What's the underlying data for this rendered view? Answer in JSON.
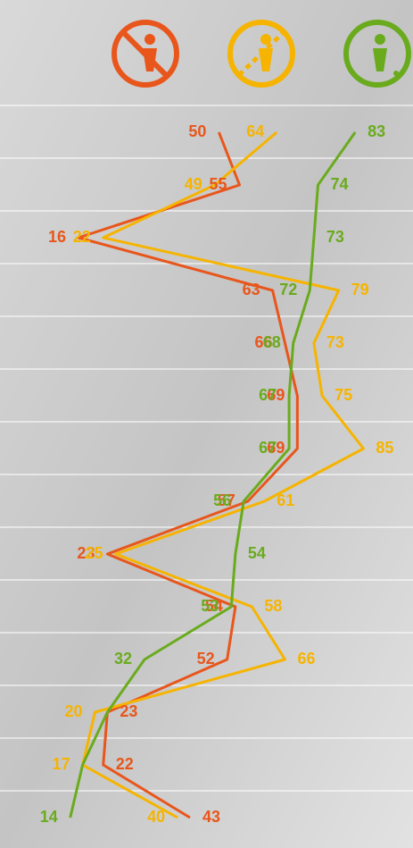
{
  "chart_data": {
    "type": "line",
    "orientation": "vertical",
    "xlim": [
      -3,
      97
    ],
    "series": [
      {
        "color": "#e8561c",
        "values": [
          50,
          55,
          16,
          63,
          66,
          69,
          69,
          57,
          23,
          54,
          52,
          23,
          22,
          43
        ]
      },
      {
        "color": "#f6b400",
        "values": [
          64,
          49,
          22,
          79,
          73,
          75,
          85,
          61,
          25,
          58,
          66,
          20,
          17,
          40
        ]
      },
      {
        "color": "#6aab1e",
        "values": [
          83,
          74,
          73,
          72,
          68,
          67,
          67,
          56,
          54,
          53,
          32,
          23,
          17,
          14
        ],
        "value_labels": [
          "83",
          "74",
          "73",
          "72",
          "68",
          "67",
          "67",
          "56",
          "54",
          "53",
          "32",
          null,
          null,
          "14"
        ]
      }
    ]
  }
}
